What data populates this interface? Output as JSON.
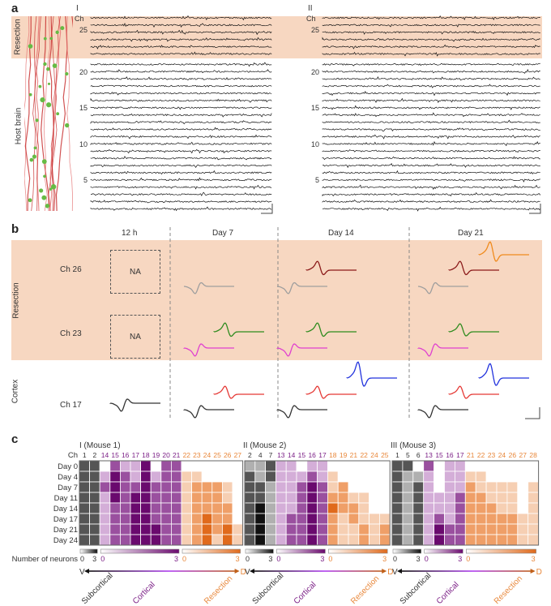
{
  "panel_a": {
    "letter": "a",
    "region_labels": {
      "resection": "Resection",
      "host": "Host brain"
    },
    "sub_labels": [
      "I",
      "II"
    ],
    "channel_label": "Ch",
    "channel_ticks": [
      "25",
      "20",
      "15",
      "10",
      "5"
    ],
    "channels": 27,
    "resection_channels": 6
  },
  "panel_b": {
    "letter": "b",
    "columns": [
      "12 h",
      "Day 7",
      "Day 14",
      "Day 21"
    ],
    "region_labels": {
      "resection": "Resection",
      "cortex": "Cortex"
    },
    "rows": [
      "Ch 26",
      "Ch 23",
      "Ch 17"
    ],
    "na_label": "NA"
  },
  "panel_c": {
    "letter": "c",
    "legend_label": "Number of neurons",
    "axis_ends": {
      "left": "V",
      "right": "D"
    },
    "region_labels": [
      "Subcortical",
      "Cortical",
      "Resection"
    ],
    "colors": {
      "subcortical": "#1a1a1a",
      "cortical": "#6a0a6e",
      "resection": "#e8772a",
      "resection_band": "#f7d7c1"
    }
  },
  "chart_data": [
    {
      "type": "heatmap",
      "title": "I (Mouse 1)",
      "ylabel": "Ch",
      "rows": [
        "Day 0",
        "Day 4",
        "Day 7",
        "Day 11",
        "Day 14",
        "Day 17",
        "Day 21",
        "Day 24"
      ],
      "groups": [
        {
          "name": "Subcortical",
          "channels": [
            "1",
            "2"
          ]
        },
        {
          "name": "Cortical",
          "channels": [
            "14",
            "15",
            "16",
            "17",
            "18",
            "19",
            "20",
            "21"
          ]
        },
        {
          "name": "Resection",
          "channels": [
            "22",
            "23",
            "24",
            "25",
            "26",
            "27"
          ]
        }
      ],
      "scale": [
        0,
        3
      ],
      "values": [
        [
          2,
          2,
          0,
          2,
          1,
          1,
          3,
          0,
          2,
          2,
          0,
          0,
          0,
          0,
          0,
          0
        ],
        [
          2,
          2,
          1,
          3,
          2,
          1,
          3,
          1,
          2,
          2,
          1,
          1,
          0,
          0,
          0,
          0
        ],
        [
          2,
          2,
          2,
          3,
          2,
          2,
          3,
          2,
          2,
          2,
          1,
          2,
          2,
          2,
          1,
          0
        ],
        [
          2,
          2,
          1,
          3,
          2,
          3,
          3,
          2,
          2,
          2,
          1,
          2,
          2,
          2,
          1,
          0
        ],
        [
          2,
          2,
          1,
          2,
          2,
          3,
          3,
          2,
          2,
          2,
          1,
          2,
          2,
          2,
          2,
          0
        ],
        [
          2,
          2,
          1,
          2,
          2,
          3,
          3,
          2,
          2,
          2,
          1,
          2,
          3,
          2,
          2,
          0
        ],
        [
          2,
          2,
          1,
          2,
          2,
          3,
          3,
          3,
          2,
          2,
          1,
          2,
          3,
          2,
          3,
          1
        ],
        [
          2,
          2,
          1,
          2,
          2,
          3,
          3,
          3,
          2,
          2,
          1,
          2,
          3,
          1,
          3,
          1
        ]
      ]
    },
    {
      "type": "heatmap",
      "title": "II (Mouse 2)",
      "rows": [
        "Day 0",
        "Day 4",
        "Day 7",
        "Day 11",
        "Day 14",
        "Day 17",
        "Day 21",
        "Day 24"
      ],
      "groups": [
        {
          "name": "Subcortical",
          "channels": [
            "2",
            "4",
            "7"
          ]
        },
        {
          "name": "Cortical",
          "channels": [
            "13",
            "14",
            "15",
            "16",
            "17"
          ]
        },
        {
          "name": "Resection",
          "channels": [
            "18",
            "19",
            "21",
            "22",
            "24",
            "25"
          ]
        }
      ],
      "scale": [
        0,
        3
      ],
      "values": [
        [
          1,
          1,
          2,
          1,
          1,
          0,
          1,
          1,
          0,
          0,
          0,
          0,
          0,
          0
        ],
        [
          2,
          1,
          2,
          1,
          1,
          1,
          2,
          1,
          1,
          0,
          0,
          0,
          0,
          0
        ],
        [
          2,
          2,
          1,
          1,
          1,
          2,
          3,
          2,
          1,
          2,
          0,
          0,
          0,
          0
        ],
        [
          2,
          2,
          1,
          1,
          1,
          2,
          3,
          2,
          2,
          2,
          1,
          1,
          0,
          0
        ],
        [
          2,
          3,
          1,
          1,
          1,
          2,
          3,
          2,
          3,
          2,
          2,
          1,
          0,
          0
        ],
        [
          2,
          3,
          1,
          1,
          2,
          2,
          3,
          2,
          2,
          1,
          2,
          1,
          1,
          1
        ],
        [
          2,
          3,
          1,
          1,
          2,
          2,
          3,
          2,
          2,
          1,
          1,
          2,
          1,
          2
        ],
        [
          2,
          3,
          1,
          1,
          2,
          2,
          3,
          2,
          2,
          1,
          1,
          2,
          1,
          2
        ]
      ]
    },
    {
      "type": "heatmap",
      "title": "III (Mouse 3)",
      "rows": [
        "Day 0",
        "Day 4",
        "Day 7",
        "Day 11",
        "Day 14",
        "Day 17",
        "Day 21",
        "Day 24"
      ],
      "groups": [
        {
          "name": "Subcortical",
          "channels": [
            "1",
            "5",
            "6"
          ]
        },
        {
          "name": "Cortical",
          "channels": [
            "13",
            "15",
            "16",
            "17"
          ]
        },
        {
          "name": "Resection",
          "channels": [
            "21",
            "22",
            "23",
            "24",
            "26",
            "27",
            "28"
          ]
        }
      ],
      "scale": [
        0,
        3
      ],
      "values": [
        [
          2,
          2,
          0,
          2,
          0,
          1,
          1,
          0,
          0,
          0,
          0,
          0,
          0,
          0
        ],
        [
          2,
          1,
          1,
          1,
          0,
          1,
          1,
          1,
          1,
          0,
          0,
          0,
          0,
          0
        ],
        [
          2,
          1,
          2,
          1,
          0,
          1,
          1,
          2,
          1,
          1,
          1,
          1,
          0,
          1
        ],
        [
          2,
          1,
          2,
          1,
          1,
          1,
          2,
          2,
          2,
          1,
          1,
          1,
          0,
          1
        ],
        [
          2,
          1,
          2,
          1,
          1,
          1,
          2,
          2,
          2,
          2,
          1,
          1,
          0,
          1
        ],
        [
          2,
          1,
          2,
          1,
          2,
          1,
          2,
          2,
          2,
          2,
          2,
          2,
          1,
          1
        ],
        [
          2,
          1,
          2,
          1,
          3,
          2,
          2,
          2,
          2,
          2,
          2,
          2,
          1,
          1
        ],
        [
          2,
          1,
          2,
          1,
          3,
          2,
          2,
          2,
          2,
          2,
          2,
          2,
          1,
          1
        ]
      ]
    }
  ]
}
